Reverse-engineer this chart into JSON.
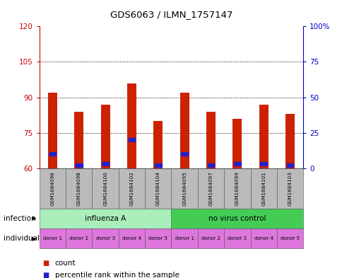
{
  "title": "GDS6063 / ILMN_1757147",
  "samples": [
    "GSM1684096",
    "GSM1684098",
    "GSM1684100",
    "GSM1684102",
    "GSM1684104",
    "GSM1684095",
    "GSM1684097",
    "GSM1684099",
    "GSM1684101",
    "GSM1684103"
  ],
  "count_values": [
    92,
    84,
    87,
    96,
    80,
    92,
    84,
    81,
    87,
    83
  ],
  "percentile_values": [
    10,
    2,
    3,
    20,
    2,
    10,
    2,
    3,
    3,
    2
  ],
  "ylim_left": [
    60,
    120
  ],
  "ylim_right": [
    0,
    100
  ],
  "yticks_left": [
    60,
    75,
    90,
    105,
    120
  ],
  "yticks_right": [
    0,
    25,
    50,
    75,
    100
  ],
  "ytick_labels_left": [
    "60",
    "75",
    "90",
    "105",
    "120"
  ],
  "ytick_labels_right": [
    "0",
    "25",
    "50",
    "75",
    "100%"
  ],
  "bar_color": "#cc2200",
  "blue_color": "#2222cc",
  "infection_groups": [
    {
      "label": "influenza A",
      "start": 0,
      "end": 5,
      "color": "#aaeebb"
    },
    {
      "label": "no virus control",
      "start": 5,
      "end": 10,
      "color": "#44cc55"
    }
  ],
  "individual_labels": [
    "donor 1",
    "donor 2",
    "donor 3",
    "donor 4",
    "donor 5",
    "donor 1",
    "donor 2",
    "donor 3",
    "donor 4",
    "donor 5"
  ],
  "individual_color": "#dd77dd",
  "sample_bg_color": "#bbbbbb",
  "legend_count_color": "#cc2200",
  "legend_percentile_color": "#2222cc",
  "fig_bg": "#ffffff",
  "infection_row_label": "infection",
  "individual_row_label": "individual",
  "bar_width": 0.35
}
